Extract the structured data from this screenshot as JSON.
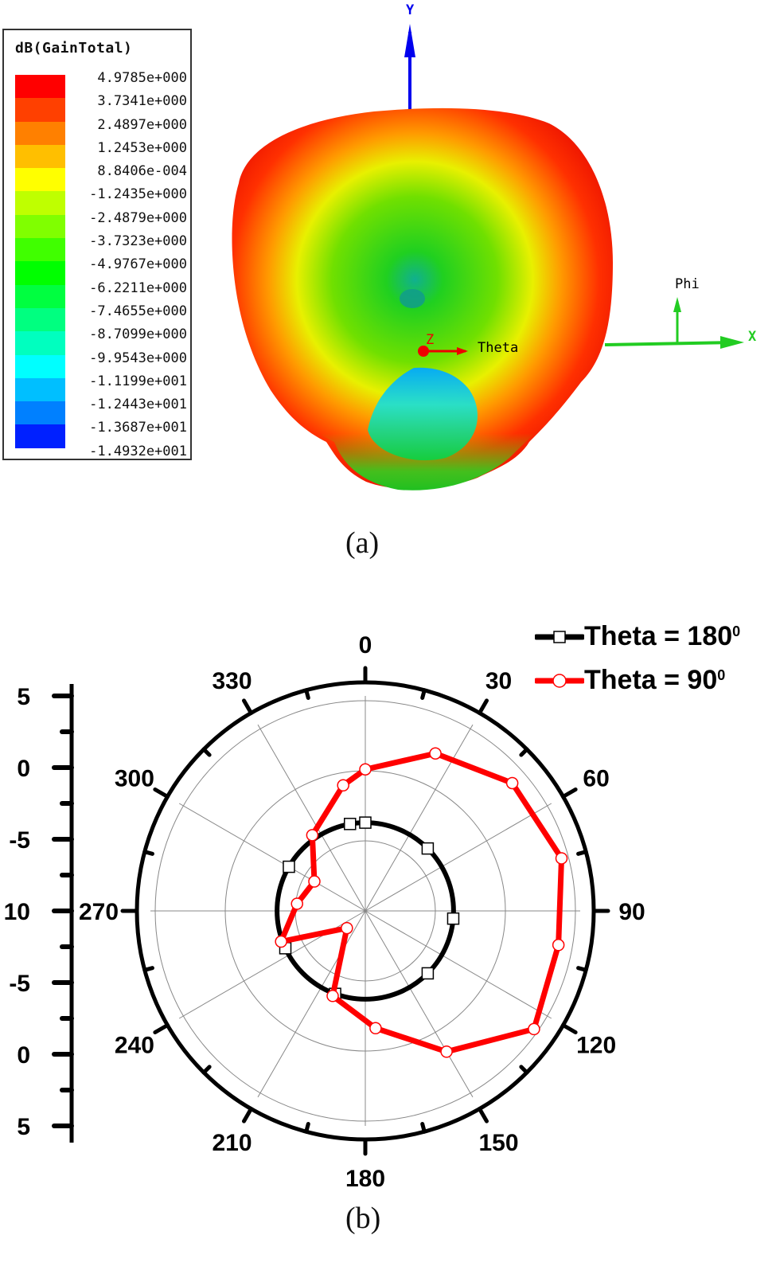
{
  "panel_a": {
    "caption": "(a)",
    "legend": {
      "title": "dB(GainTotal)",
      "entries": [
        {
          "label": "4.9785e+000",
          "color": "#ff0000"
        },
        {
          "label": "3.7341e+000",
          "color": "#ff4000"
        },
        {
          "label": "2.4897e+000",
          "color": "#ff8000"
        },
        {
          "label": "1.2453e+000",
          "color": "#ffbf00"
        },
        {
          "label": "8.8406e-004",
          "color": "#ffff00"
        },
        {
          "label": "-1.2435e+000",
          "color": "#bfff00"
        },
        {
          "label": "-2.4879e+000",
          "color": "#80ff00"
        },
        {
          "label": "-3.7323e+000",
          "color": "#40ff00"
        },
        {
          "label": "-4.9767e+000",
          "color": "#00ff00"
        },
        {
          "label": "-6.2211e+000",
          "color": "#00ff40"
        },
        {
          "label": "-7.4655e+000",
          "color": "#00ff80"
        },
        {
          "label": "-8.7099e+000",
          "color": "#00ffbf"
        },
        {
          "label": "-9.9543e+000",
          "color": "#00ffff"
        },
        {
          "label": "-1.1199e+001",
          "color": "#00bfff"
        },
        {
          "label": "-1.2443e+001",
          "color": "#0080ff"
        },
        {
          "label": "-1.3687e+001",
          "color": "#0040ff"
        },
        {
          "label": "-1.4932e+001",
          "color": "#0000ff"
        }
      ]
    },
    "axes": {
      "y": "Y",
      "x": "X",
      "phi": "Phi",
      "theta": "Theta",
      "z": "Z"
    }
  },
  "panel_b": {
    "caption": "(b)",
    "radial_axis_labels": [
      "5",
      "0",
      "-5",
      "10",
      "-5",
      "0",
      "5"
    ],
    "angle_labels": [
      "0",
      "30",
      "60",
      "90",
      "120",
      "150",
      "180",
      "210",
      "240",
      "270",
      "300",
      "330"
    ],
    "legend": [
      {
        "label": "Theta = 180",
        "sup": "0",
        "color": "#000000",
        "marker": "square"
      },
      {
        "label": "Theta = 90",
        "sup": "0",
        "color": "#ff0000",
        "marker": "circle"
      }
    ]
  },
  "chart_data": [
    {
      "type": "heatmap",
      "title": "dB(GainTotal)",
      "description": "3D radiation pattern (HFSS) with color scale",
      "colorbar": {
        "min": -14.932,
        "max": 4.9785,
        "ticks": [
          4.9785,
          3.7341,
          2.4897,
          1.2453,
          0.00088406,
          -1.2435,
          -2.4879,
          -3.7323,
          -4.9767,
          -6.2211,
          -7.4655,
          -8.7099,
          -9.9543,
          -11.199,
          -12.443,
          -13.687,
          -14.932
        ]
      },
      "axes_labels": [
        "X",
        "Y",
        "Z",
        "Phi",
        "Theta"
      ]
    },
    {
      "type": "line",
      "subtype": "polar",
      "title": "",
      "radial_axis": {
        "range": [
          -10,
          5
        ],
        "unit": "dB",
        "ticks": [
          -10,
          -5,
          0,
          5
        ]
      },
      "angular_axis": {
        "ticks": [
          0,
          30,
          60,
          90,
          120,
          150,
          180,
          210,
          240,
          270,
          300,
          330
        ],
        "unit": "deg"
      },
      "legend_position": "top-right",
      "series": [
        {
          "name": "Theta = 180°",
          "color": "#000000",
          "marker": "square",
          "angles": [
            0,
            45,
            95,
            135,
            200,
            245,
            300,
            350
          ],
          "values": [
            -3.7,
            -3.7,
            -3.7,
            -3.7,
            -3.7,
            -3.7,
            -3.7,
            -3.7
          ]
        },
        {
          "name": "Theta = 90°",
          "color": "#ff0000",
          "marker": "circle",
          "angles": [
            0,
            24,
            49,
            75,
            100,
            125,
            150,
            175,
            201,
            227,
            250,
            276,
            300,
            325,
            350
          ],
          "values": [
            0.1,
            2.3,
            3.9,
            4.5,
            4.0,
            4.7,
            1.6,
            -1.6,
            -3.5,
            -8.2,
            -3.6,
            -5.1,
            -5.8,
            -3.4,
            -0.9
          ]
        }
      ]
    }
  ]
}
